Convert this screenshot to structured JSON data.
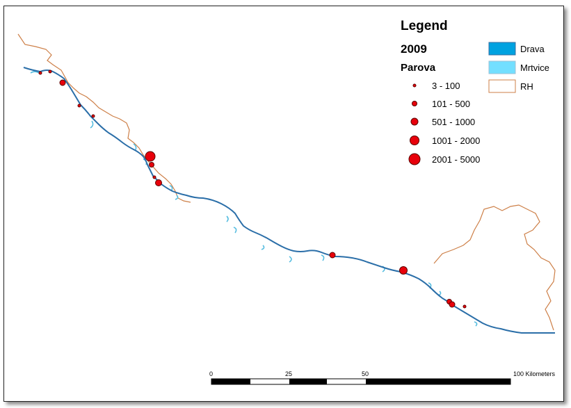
{
  "legend": {
    "title": "Legend",
    "year": "2009",
    "variable": "Parova",
    "classes": [
      {
        "label": "3 - 100"
      },
      {
        "label": "101 - 500"
      },
      {
        "label": "501 - 1000"
      },
      {
        "label": "1001 - 2000"
      },
      {
        "label": "2001 - 5000"
      }
    ],
    "layers": [
      {
        "label": "Drava",
        "fill": "#00a2e0",
        "stroke": "#3a6fa0"
      },
      {
        "label": "Mrtvice",
        "fill": "#73dfff",
        "stroke": "#9fc0d6"
      },
      {
        "label": "RH",
        "fill": "#ffffff",
        "stroke": "#cd7f47"
      }
    ]
  },
  "colors": {
    "river": "#2a6ea8",
    "oxbow": "#56bde0",
    "border": "#cd7f47",
    "point_fill": "#e8000b",
    "point_stroke": "#5a0000"
  },
  "scale_bar": {
    "labels": [
      "0",
      "25",
      "50",
      "100 Kilometers"
    ]
  }
}
